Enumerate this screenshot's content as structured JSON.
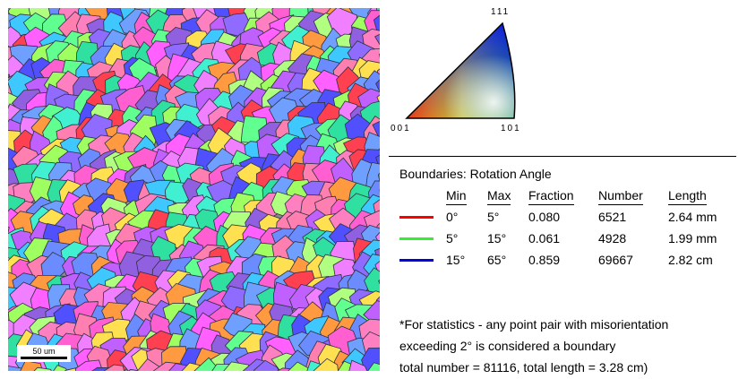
{
  "map": {
    "scalebar_label": "50 um"
  },
  "ipf_key": {
    "top_label": "111",
    "left_label": "001",
    "right_label": "101"
  },
  "legend": {
    "title": "Boundaries: Rotation Angle",
    "headers": {
      "min": "Min",
      "max": "Max",
      "fraction": "Fraction",
      "number": "Number",
      "length": "Length"
    },
    "rows": [
      {
        "color": "#ff0000",
        "min": "0°",
        "max": "5°",
        "fraction": "0.080",
        "number": "6521",
        "length": "2.64 mm"
      },
      {
        "color": "#33ee33",
        "min": "5°",
        "max": "15°",
        "fraction": "0.061",
        "number": "4928",
        "length": "1.99 mm"
      },
      {
        "color": "#0000dd",
        "min": "15°",
        "max": "65°",
        "fraction": "0.859",
        "number": "69667",
        "length": "2.82 cm"
      }
    ]
  },
  "notes": {
    "line1": "*For statistics - any point pair with misorientation",
    "line2": "exceeding 2° is considered a boundary",
    "line3": "total number = 81116, total length = 3.28 cm)"
  }
}
